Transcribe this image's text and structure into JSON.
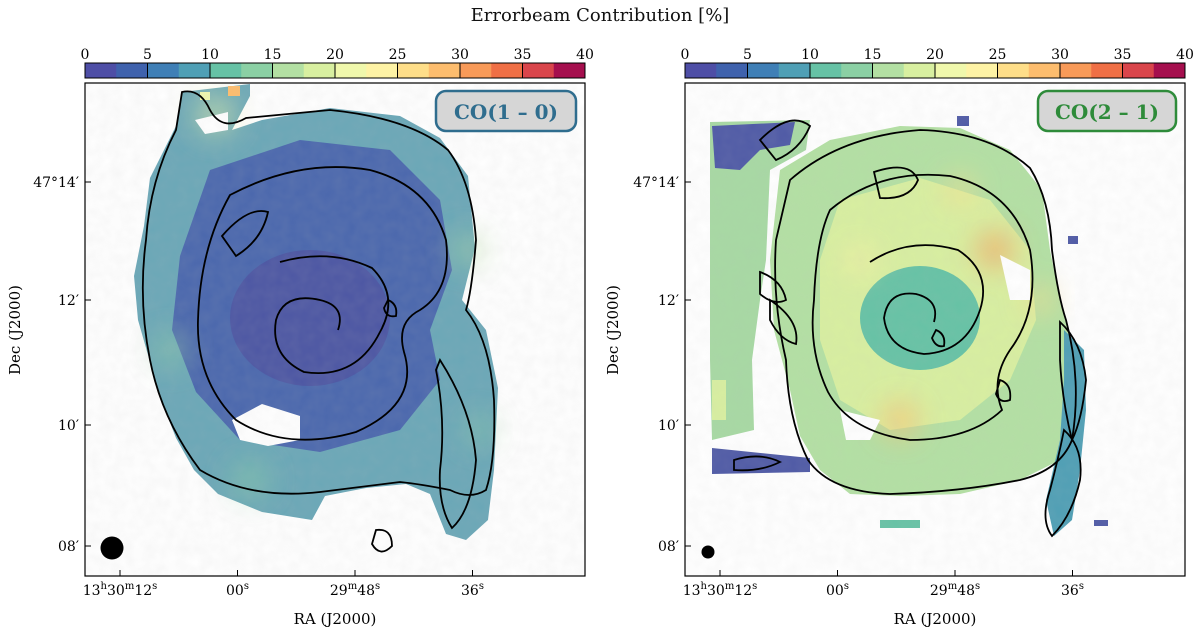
{
  "figure_title": "Errorbeam Contribution [%]",
  "colorbar": {
    "ticks": [
      "0",
      "5",
      "10",
      "15",
      "20",
      "25",
      "30",
      "35",
      "40"
    ],
    "min": 0,
    "max": 40,
    "n_bins": 16,
    "colormap": "Spectral_r",
    "colors": [
      "#4e4ea6",
      "#3f62ad",
      "#3f7fb6",
      "#4f9fb5",
      "#66c2a5",
      "#8bd0a4",
      "#b3e0a3",
      "#d8efa0",
      "#f0f8ac",
      "#fef3a5",
      "#fede89",
      "#fdbd6e",
      "#f89a58",
      "#ef6f45",
      "#d9454b",
      "#a50f4e"
    ]
  },
  "chart_data": [
    {
      "type": "heatmap",
      "panel_label": "CO(1 – 0)",
      "label_color": "#2f6d8e",
      "xlabel": "RA (J2000)",
      "ylabel": "Dec (J2000)",
      "x_ticks": [
        "13h30m12s",
        "00s",
        "29m48s",
        "36s"
      ],
      "y_ticks": [
        "47°14′",
        "12′",
        "10′",
        "08′"
      ],
      "typical_value_range": [
        2,
        12
      ],
      "beam": "large filled circle, bottom-left",
      "contours": "black intensity contours over spiral arms"
    },
    {
      "type": "heatmap",
      "panel_label": "CO(2 – 1)",
      "label_color": "#2e8b3a",
      "xlabel": "RA (J2000)",
      "ylabel": "Dec (J2000)",
      "x_ticks": [
        "13h30m12s",
        "00s",
        "29m48s",
        "36s"
      ],
      "y_ticks": [
        "47°14′",
        "12′",
        "10′",
        "08′"
      ],
      "typical_value_range": [
        8,
        28
      ],
      "beam": "small filled circle, bottom-left",
      "contours": "black intensity contours over spiral arms"
    }
  ]
}
